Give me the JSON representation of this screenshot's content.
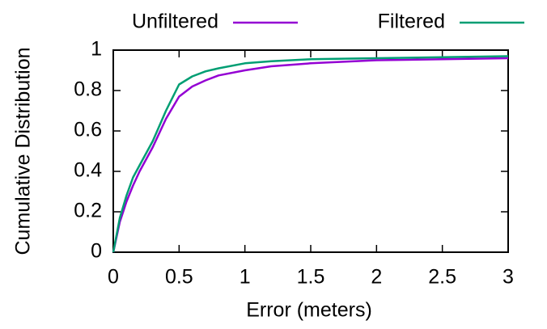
{
  "chart_data": {
    "type": "line",
    "xlabel": "Error (meters)",
    "ylabel": "Cumulative Distribution",
    "x": [
      0,
      0.05,
      0.1,
      0.15,
      0.2,
      0.3,
      0.4,
      0.5,
      0.6,
      0.7,
      0.8,
      1.0,
      1.2,
      1.5,
      2.0,
      2.5,
      3.0
    ],
    "series": [
      {
        "name": "Unfiltered",
        "color": "#9400d3",
        "values": [
          0,
          0.15,
          0.25,
          0.33,
          0.4,
          0.52,
          0.66,
          0.77,
          0.82,
          0.85,
          0.875,
          0.9,
          0.92,
          0.935,
          0.95,
          0.955,
          0.96
        ]
      },
      {
        "name": "Filtered",
        "color": "#009e73",
        "values": [
          0,
          0.17,
          0.28,
          0.37,
          0.43,
          0.55,
          0.7,
          0.83,
          0.87,
          0.895,
          0.91,
          0.935,
          0.945,
          0.955,
          0.96,
          0.965,
          0.97
        ]
      }
    ],
    "xlim": [
      0,
      3
    ],
    "xticks": [
      0,
      0.5,
      1,
      1.5,
      2,
      2.5,
      3
    ],
    "ylim": [
      0,
      1
    ],
    "yticks": [
      0,
      0.2,
      0.4,
      0.6,
      0.8,
      1
    ],
    "grid": false
  }
}
